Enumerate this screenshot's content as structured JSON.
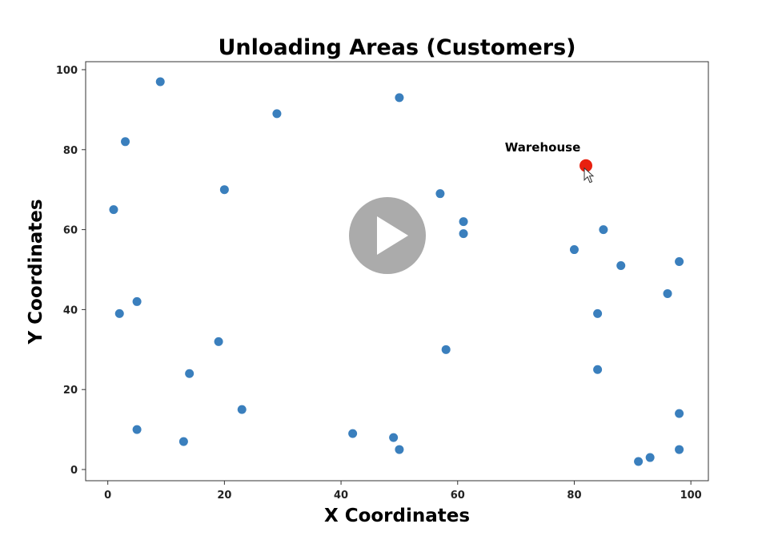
{
  "chart_data": {
    "type": "scatter",
    "title": "Unloading Areas (Customers)",
    "xlabel": "X Coordinates",
    "ylabel": "Y Coordinates",
    "xlim": [
      -3.8,
      103
    ],
    "ylim": [
      -2.8,
      102
    ],
    "x_ticks": [
      0,
      20,
      40,
      60,
      80,
      100
    ],
    "y_ticks": [
      0,
      20,
      40,
      60,
      80,
      100
    ],
    "grid": false,
    "series": [
      {
        "color": "#3a7fbd",
        "points": [
          {
            "x": 9,
            "y": 97
          },
          {
            "x": 50,
            "y": 93
          },
          {
            "x": 29,
            "y": 89
          },
          {
            "x": 3,
            "y": 82
          },
          {
            "x": 20,
            "y": 70
          },
          {
            "x": 57,
            "y": 69
          },
          {
            "x": 1,
            "y": 65
          },
          {
            "x": 61,
            "y": 62
          },
          {
            "x": 61,
            "y": 59
          },
          {
            "x": 85,
            "y": 60
          },
          {
            "x": 80,
            "y": 55
          },
          {
            "x": 88,
            "y": 51
          },
          {
            "x": 98,
            "y": 52
          },
          {
            "x": 96,
            "y": 44
          },
          {
            "x": 5,
            "y": 42
          },
          {
            "x": 2,
            "y": 39
          },
          {
            "x": 84,
            "y": 39
          },
          {
            "x": 19,
            "y": 32
          },
          {
            "x": 58,
            "y": 30
          },
          {
            "x": 84,
            "y": 25
          },
          {
            "x": 14,
            "y": 24
          },
          {
            "x": 23,
            "y": 15
          },
          {
            "x": 98,
            "y": 14
          },
          {
            "x": 5,
            "y": 10
          },
          {
            "x": 42,
            "y": 9
          },
          {
            "x": 49,
            "y": 8
          },
          {
            "x": 13,
            "y": 7
          },
          {
            "x": 50,
            "y": 5
          },
          {
            "x": 98,
            "y": 5
          },
          {
            "x": 93,
            "y": 3
          },
          {
            "x": 91,
            "y": 2
          }
        ]
      }
    ],
    "annotations": [
      {
        "text": "Warehouse",
        "x": 82,
        "y": 76,
        "color": "#e8200f"
      }
    ]
  },
  "overlay": {
    "play_button_color": "#a6a6a6",
    "play_icon": "play-icon",
    "cursor_icon": "pointer-cursor-icon"
  }
}
